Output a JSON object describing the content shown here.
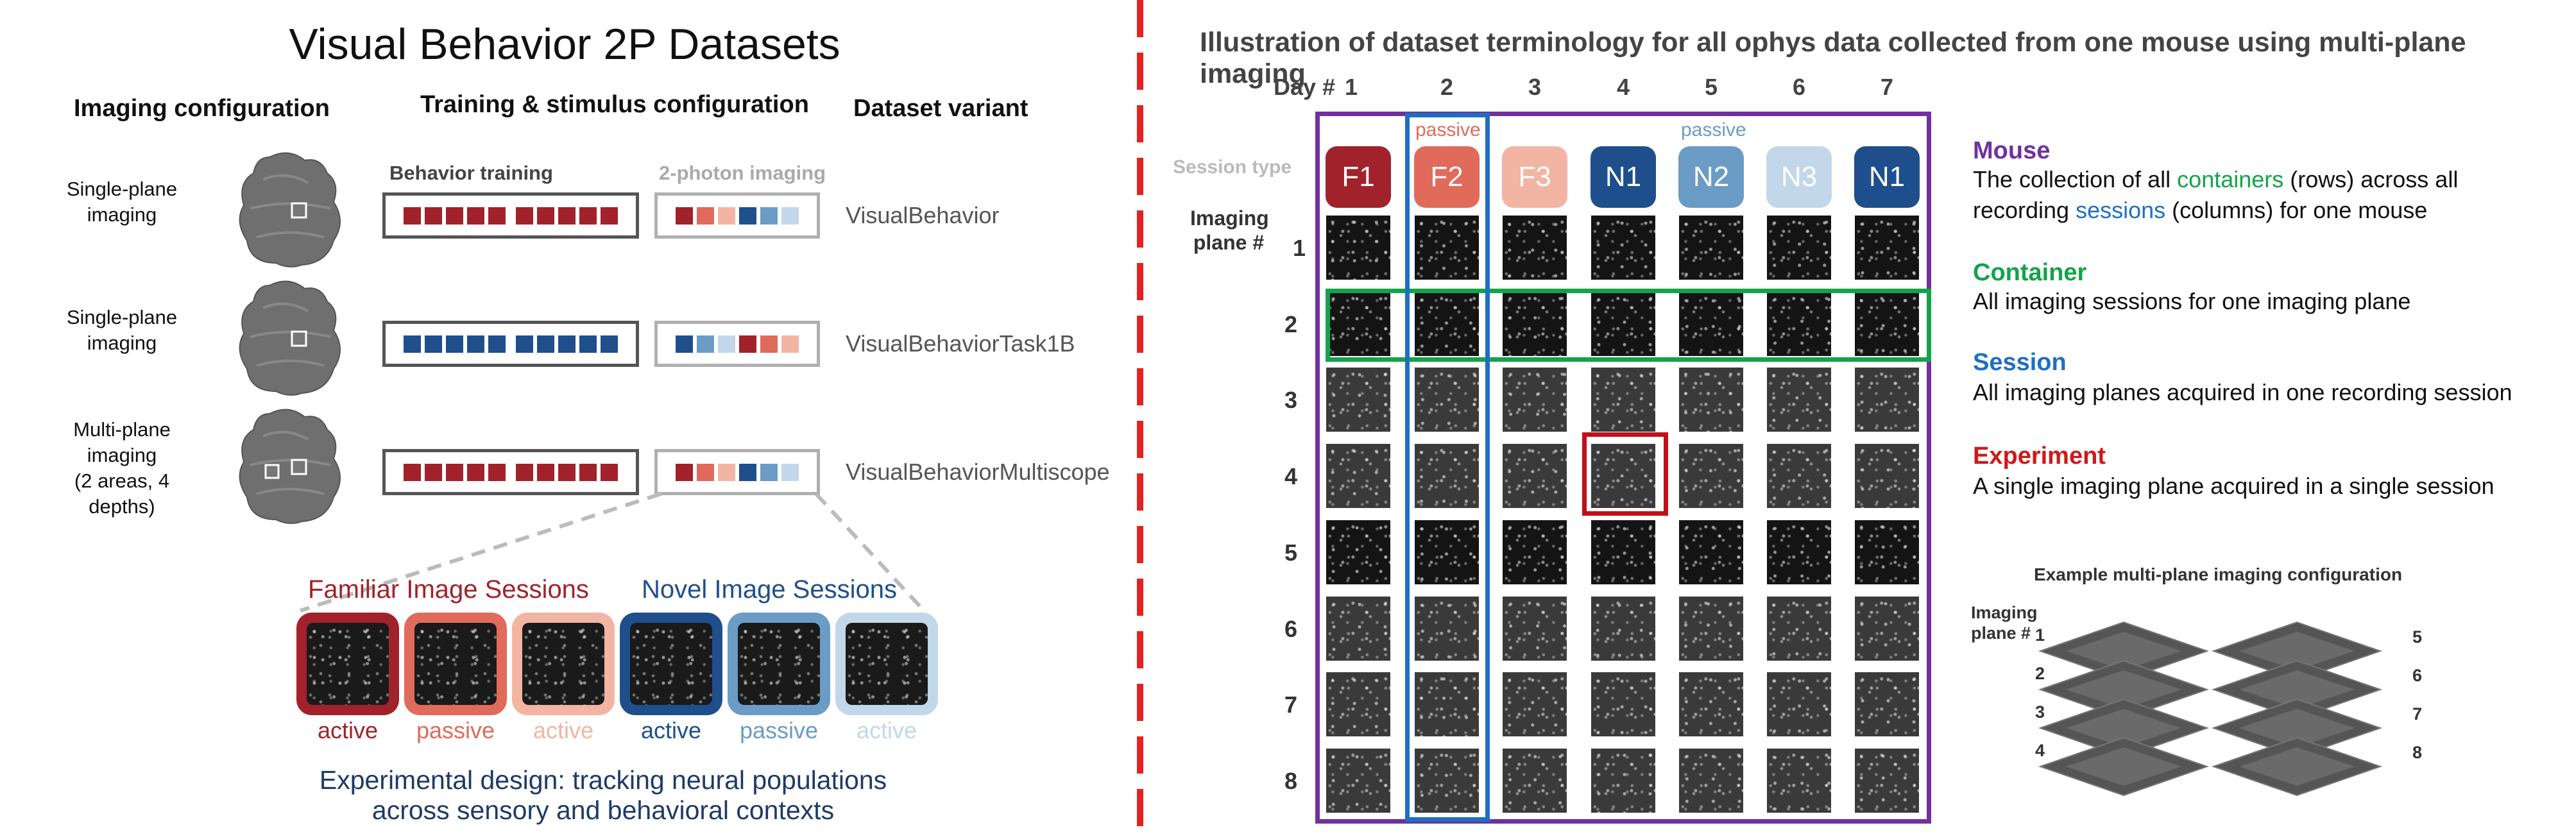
{
  "left": {
    "title": "Visual Behavior 2P Datasets",
    "col_headers": {
      "imaging_configuration": "Imaging configuration",
      "training_stimulus": "Training & stimulus configuration",
      "dataset_variant": "Dataset variant"
    },
    "sub_headers": {
      "behavior_training": "Behavior training",
      "two_photon": "2-photon imaging"
    },
    "rows": [
      {
        "config_line1": "Single-plane",
        "config_line2": "imaging",
        "config_line3": "",
        "variant": "VisualBehavior",
        "training_colors": [
          "#a1222a",
          "#a1222a",
          "#a1222a",
          "#a1222a",
          "#a1222a",
          "#a1222a",
          "#a1222a",
          "#a1222a",
          "#a1222a",
          "#a1222a"
        ],
        "imaging_colors": [
          "#a1222a",
          "#e06b5b",
          "#f3b5a3",
          "#1e4f8c",
          "#6a9cc6",
          "#c3d7ea"
        ]
      },
      {
        "config_line1": "Single-plane",
        "config_line2": "imaging",
        "config_line3": "",
        "variant": "VisualBehaviorTask1B",
        "training_colors": [
          "#1e4f8c",
          "#1e4f8c",
          "#1e4f8c",
          "#1e4f8c",
          "#1e4f8c",
          "#1e4f8c",
          "#1e4f8c",
          "#1e4f8c",
          "#1e4f8c",
          "#1e4f8c"
        ],
        "imaging_colors": [
          "#1e4f8c",
          "#6a9cc6",
          "#c3d7ea",
          "#a1222a",
          "#e06b5b",
          "#f3b5a3"
        ]
      },
      {
        "config_line1": "Multi-plane",
        "config_line2": "imaging",
        "config_line3": "(2 areas, 4 depths)",
        "variant": "VisualBehaviorMultiscope",
        "training_colors": [
          "#a1222a",
          "#a1222a",
          "#a1222a",
          "#a1222a",
          "#a1222a",
          "#a1222a",
          "#a1222a",
          "#a1222a",
          "#a1222a",
          "#a1222a"
        ],
        "imaging_colors": [
          "#a1222a",
          "#e06b5b",
          "#f3b5a3",
          "#1e4f8c",
          "#6a9cc6",
          "#c3d7ea"
        ]
      }
    ],
    "familiar_title": "Familiar Image Sessions",
    "novel_title": "Novel Image Sessions",
    "sessions": [
      {
        "label": "active",
        "color": "#a1222a"
      },
      {
        "label": "passive",
        "color": "#e06b5b"
      },
      {
        "label": "active",
        "color": "#f3b5a3"
      },
      {
        "label": "active",
        "color": "#1e4f8c"
      },
      {
        "label": "passive",
        "color": "#6a9cc6"
      },
      {
        "label": "active",
        "color": "#c3d7ea"
      }
    ],
    "caption_line1": "Experimental design: tracking neural populations",
    "caption_line2": "across sensory and behavioral contexts"
  },
  "right": {
    "title": "Illustration of dataset terminology for all ophys data collected from one mouse using multi-plane imaging",
    "day_label": "Day #",
    "days": [
      "1",
      "2",
      "3",
      "4",
      "5",
      "6",
      "7"
    ],
    "session_type_label": "Session type",
    "imaging_plane_label_line1": "Imaging",
    "imaging_plane_label_line2": "plane #",
    "passive_label_day2": "passive",
    "passive_label_day5": "passive",
    "sessions": [
      {
        "name": "F1",
        "color": "#a1222a"
      },
      {
        "name": "F2",
        "color": "#e06b5b"
      },
      {
        "name": "F3",
        "color": "#f3b5a3"
      },
      {
        "name": "N1",
        "color": "#1e4f8c"
      },
      {
        "name": "N2",
        "color": "#6a9cc6"
      },
      {
        "name": "N3",
        "color": "#c3d7ea"
      },
      {
        "name": "N1",
        "color": "#1e4f8c"
      }
    ],
    "planes": [
      "1",
      "2",
      "3",
      "4",
      "5",
      "6",
      "7",
      "8"
    ],
    "colors": {
      "mouse": "#7030a0",
      "container": "#13a34b",
      "session": "#1f6fc1",
      "experiment": "#d01818"
    },
    "definitions": {
      "mouse_title": "Mouse",
      "mouse_text_a": "The collection of all ",
      "mouse_text_containers": "containers",
      "mouse_text_b": " (rows) across all",
      "mouse_text_c": "recording ",
      "mouse_text_sessions": "sessions",
      "mouse_text_d": " (columns) for one mouse",
      "container_title": "Container",
      "container_text": "All imaging sessions for one imaging plane",
      "session_title": "Session",
      "session_text": "All imaging planes acquired in one recording session",
      "experiment_title": "Experiment",
      "experiment_text": "A single imaging plane acquired in a single session"
    },
    "example_title": "Example multi-plane imaging configuration",
    "example_plane_label_line1": "Imaging",
    "example_plane_label_line2": "plane #",
    "example_left_planes": [
      "1",
      "2",
      "3",
      "4"
    ],
    "example_right_planes": [
      "5",
      "6",
      "7",
      "8"
    ]
  }
}
